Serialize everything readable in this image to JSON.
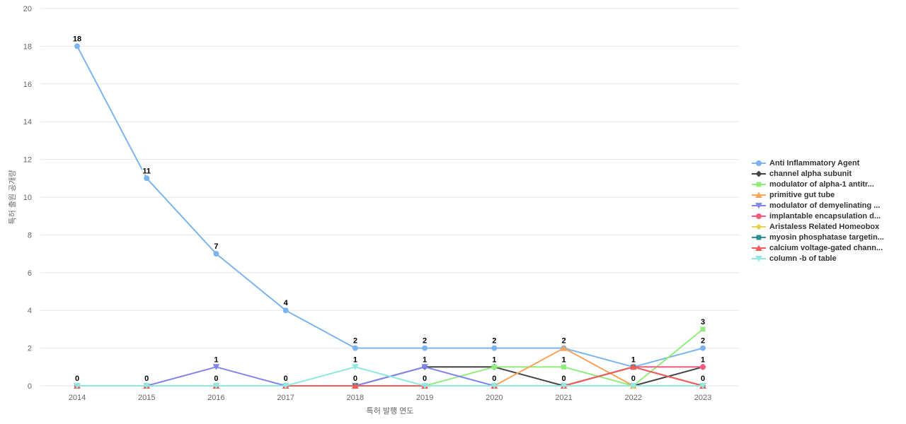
{
  "chart_data": {
    "type": "line",
    "title": "",
    "xlabel": "특허 발행 연도",
    "ylabel": "특허 출원 공개량",
    "categories": [
      "2014",
      "2015",
      "2016",
      "2017",
      "2018",
      "2019",
      "2020",
      "2021",
      "2022",
      "2023"
    ],
    "ylim": [
      0,
      20
    ],
    "ytick_step": 2,
    "grid": true,
    "legend_position": "right",
    "series": [
      {
        "name": "Anti Inflammatory Agent",
        "color": "#7cb5ec",
        "marker": "circle",
        "values": [
          18,
          11,
          7,
          4,
          2,
          2,
          2,
          2,
          1,
          2
        ]
      },
      {
        "name": "channel alpha subunit",
        "color": "#434348",
        "marker": "diamond",
        "values": [
          0,
          0,
          0,
          0,
          0,
          1,
          1,
          0,
          0,
          1
        ]
      },
      {
        "name": "modulator of alpha-1 antitr...",
        "color": "#90ed7d",
        "marker": "square",
        "values": [
          0,
          0,
          0,
          0,
          0,
          0,
          1,
          1,
          0,
          3
        ]
      },
      {
        "name": "primitive gut tube",
        "color": "#f7a35c",
        "marker": "triangle",
        "values": [
          0,
          0,
          0,
          0,
          0,
          0,
          0,
          2,
          0,
          0
        ]
      },
      {
        "name": "modulator of demyelinating ...",
        "color": "#8085e9",
        "marker": "triangle-down",
        "values": [
          0,
          0,
          1,
          0,
          0,
          1,
          0,
          0,
          0,
          0
        ]
      },
      {
        "name": "implantable encapsulation d...",
        "color": "#f15c80",
        "marker": "circle",
        "values": [
          0,
          0,
          0,
          0,
          0,
          0,
          0,
          0,
          1,
          1
        ]
      },
      {
        "name": "Aristaless Related Homeobox",
        "color": "#e4d354",
        "marker": "diamond",
        "values": [
          0,
          0,
          0,
          0,
          0,
          0,
          0,
          0,
          0,
          0
        ]
      },
      {
        "name": "myosin phosphatase targetin...",
        "color": "#2b908f",
        "marker": "square",
        "values": [
          0,
          0,
          0,
          0,
          0,
          0,
          0,
          0,
          1,
          0
        ]
      },
      {
        "name": "calcium voltage-gated chann...",
        "color": "#f45b5b",
        "marker": "triangle",
        "values": [
          0,
          0,
          0,
          0,
          0,
          0,
          0,
          0,
          1,
          0
        ]
      },
      {
        "name": "column -b of table",
        "color": "#91e8e1",
        "marker": "triangle-down",
        "values": [
          0,
          0,
          0,
          0,
          1,
          0,
          0,
          0,
          0,
          0
        ]
      }
    ],
    "style": {
      "grid_color": "#e6e6e6",
      "tick_label_color": "#666666",
      "axis_title_color": "#666666",
      "data_label_color": "#000000",
      "legend_text_color": "#333333",
      "background": "#ffffff"
    }
  }
}
